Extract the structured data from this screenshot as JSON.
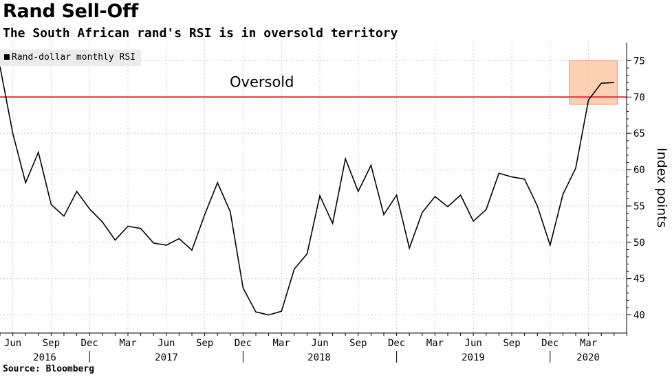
{
  "header": {
    "title": "Rand Sell-Off",
    "subtitle": "The South African rand's RSI is in oversold territory"
  },
  "legend": {
    "label": "Rand-dollar monthly RSI"
  },
  "footer": {
    "source": "Source: Bloomberg"
  },
  "colors": {
    "line": "#000000",
    "threshold": "#e8303f",
    "highlight_fill": "#fcc8a6",
    "highlight_stroke": "#f08a4b",
    "grid": "#c8c8c8"
  },
  "chart_data": {
    "type": "line",
    "title": "Rand Sell-Off",
    "ylabel": "Index points",
    "xlabel": "",
    "ylim": [
      37.5,
      77.5
    ],
    "yticks": [
      40,
      45,
      50,
      55,
      60,
      65,
      70,
      75
    ],
    "x": [
      "2016-05",
      "2016-06",
      "2016-07",
      "2016-08",
      "2016-09",
      "2016-10",
      "2016-11",
      "2016-12",
      "2017-01",
      "2017-02",
      "2017-03",
      "2017-04",
      "2017-05",
      "2017-06",
      "2017-07",
      "2017-08",
      "2017-09",
      "2017-10",
      "2017-11",
      "2017-12",
      "2018-01",
      "2018-02",
      "2018-03",
      "2018-04",
      "2018-05",
      "2018-06",
      "2018-07",
      "2018-08",
      "2018-09",
      "2018-10",
      "2018-11",
      "2018-12",
      "2019-01",
      "2019-02",
      "2019-03",
      "2019-04",
      "2019-05",
      "2019-06",
      "2019-07",
      "2019-08",
      "2019-09",
      "2019-10",
      "2019-11",
      "2019-12",
      "2020-01",
      "2020-02",
      "2020-03",
      "2020-04",
      "2020-05"
    ],
    "series": [
      {
        "name": "Rand-dollar monthly RSI",
        "values": [
          74.2,
          65.0,
          58.2,
          62.4,
          55.2,
          53.6,
          57.0,
          54.6,
          52.8,
          50.3,
          52.2,
          51.9,
          49.9,
          49.6,
          50.5,
          48.9,
          53.8,
          58.2,
          54.2,
          43.7,
          40.4,
          40.0,
          40.5,
          46.3,
          48.4,
          56.4,
          52.6,
          61.5,
          57.0,
          60.6,
          53.8,
          56.5,
          49.2,
          54.1,
          56.3,
          54.9,
          56.5,
          52.9,
          54.5,
          59.5,
          59.0,
          58.7,
          55.0,
          49.6,
          56.6,
          60.2,
          69.6,
          71.9,
          72.0
        ]
      }
    ],
    "x_tick_labels": [
      "Jun",
      "Sep",
      "Dec",
      "Mar",
      "Jun",
      "Sep",
      "Dec",
      "Mar",
      "Jun",
      "Sep",
      "Dec",
      "Mar",
      "Jun",
      "Sep",
      "Dec",
      "Mar"
    ],
    "x_tick_months": [
      "2016-06",
      "2016-09",
      "2016-12",
      "2017-03",
      "2017-06",
      "2017-09",
      "2017-12",
      "2018-03",
      "2018-06",
      "2018-09",
      "2018-12",
      "2019-03",
      "2019-06",
      "2019-09",
      "2019-12",
      "2020-03"
    ],
    "year_labels": [
      "2016",
      "2017",
      "2018",
      "2019",
      "2020"
    ],
    "year_label_months": [
      "2016-07",
      "2017-06",
      "2018-06",
      "2019-06",
      "2020-03"
    ],
    "year_divider_months": [
      "2016-12",
      "2017-12",
      "2018-12",
      "2019-12"
    ],
    "threshold": {
      "value": 70,
      "label": "Oversold"
    },
    "highlight": {
      "x_start": "2020-02",
      "x_end": "2020-06",
      "y_min": 69,
      "y_max": 75
    },
    "grid": true,
    "legend_position": "top-left"
  }
}
